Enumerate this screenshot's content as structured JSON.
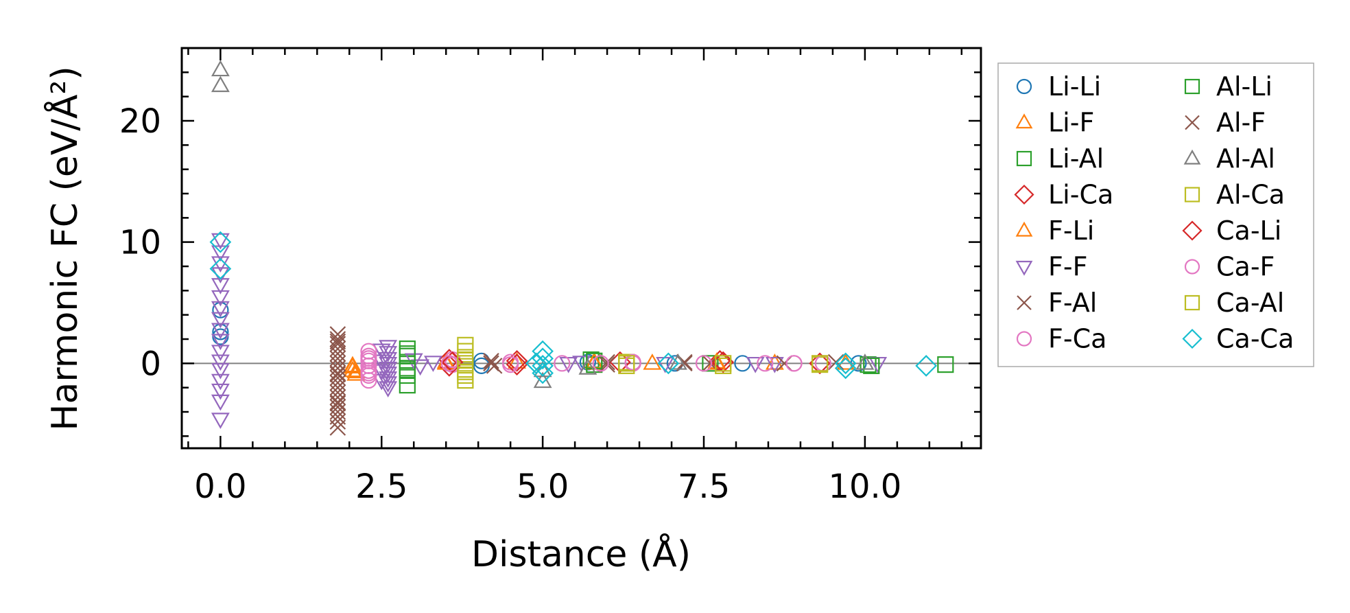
{
  "chart_data": {
    "type": "scatter",
    "title": "",
    "xlabel": "Distance (Å)",
    "ylabel": "Harmonic FC (eV/Å²)",
    "xlim": [
      -0.6,
      11.8
    ],
    "ylim": [
      -7,
      26
    ],
    "xticks": [
      0.0,
      2.5,
      5.0,
      7.5,
      10.0
    ],
    "xtick_labels": [
      "0.0",
      "2.5",
      "5.0",
      "7.5",
      "10.0"
    ],
    "yticks": [
      0,
      10,
      20
    ],
    "ytick_labels": [
      "0",
      "10",
      "20"
    ],
    "grid": false,
    "zero_line": true,
    "legend_position": "outside-right",
    "legend_columns": 2,
    "series": [
      {
        "name": "Li-Li",
        "marker": "circle",
        "color": "#1f77b4",
        "points": [
          [
            0.0,
            4.4
          ],
          [
            0.0,
            2.6
          ],
          [
            0.0,
            2.2
          ],
          [
            4.05,
            0.2
          ],
          [
            4.05,
            -0.2
          ],
          [
            5.7,
            0.1
          ],
          [
            7.05,
            0.0
          ],
          [
            8.1,
            0.0
          ],
          [
            9.9,
            0.0
          ]
        ]
      },
      {
        "name": "Li-F",
        "marker": "triangle-up",
        "color": "#ff7f0e",
        "points": [
          [
            2.05,
            -0.2
          ],
          [
            2.05,
            -0.6
          ],
          [
            2.1,
            -0.9
          ],
          [
            3.5,
            0.1
          ],
          [
            4.6,
            0.1
          ],
          [
            5.8,
            0.0
          ],
          [
            6.7,
            0.0
          ],
          [
            7.7,
            0.0
          ],
          [
            8.6,
            0.0
          ],
          [
            9.7,
            0.0
          ]
        ]
      },
      {
        "name": "Li-Al",
        "marker": "square",
        "color": "#2ca02c",
        "points": [
          [
            2.9,
            1.2
          ],
          [
            2.9,
            0.6
          ],
          [
            2.9,
            0.1
          ],
          [
            2.9,
            -0.4
          ],
          [
            2.9,
            -1.0
          ],
          [
            2.9,
            -1.8
          ],
          [
            5.75,
            0.3
          ],
          [
            5.8,
            -0.1
          ],
          [
            7.6,
            0.0
          ],
          [
            10.05,
            -0.1
          ],
          [
            11.25,
            -0.1
          ]
        ]
      },
      {
        "name": "Li-Ca",
        "marker": "diamond",
        "color": "#d62728",
        "points": [
          [
            3.55,
            0.3
          ],
          [
            3.55,
            -0.2
          ],
          [
            4.6,
            0.2
          ],
          [
            6.2,
            0.1
          ],
          [
            7.75,
            0.2
          ],
          [
            9.3,
            0.0
          ]
        ]
      },
      {
        "name": "F-Li",
        "marker": "triangle-up",
        "color": "#ff7f0e",
        "points": [
          [
            2.05,
            -0.3
          ],
          [
            2.1,
            -0.7
          ],
          [
            3.5,
            0.0
          ],
          [
            5.8,
            0.1
          ],
          [
            7.7,
            0.1
          ]
        ]
      },
      {
        "name": "F-F",
        "marker": "triangle-down",
        "color": "#9467bd",
        "points": [
          [
            0.0,
            10.2
          ],
          [
            0.0,
            9.2
          ],
          [
            0.0,
            8.3
          ],
          [
            0.0,
            7.4
          ],
          [
            0.0,
            6.5
          ],
          [
            0.0,
            5.5
          ],
          [
            0.0,
            4.6
          ],
          [
            0.0,
            3.7
          ],
          [
            0.0,
            2.8
          ],
          [
            0.0,
            1.9
          ],
          [
            0.0,
            1.0
          ],
          [
            0.0,
            0.2
          ],
          [
            0.0,
            -0.5
          ],
          [
            0.0,
            -1.4
          ],
          [
            0.0,
            -2.2
          ],
          [
            0.0,
            -3.1
          ],
          [
            0.0,
            -4.6
          ],
          [
            2.6,
            1.4
          ],
          [
            2.6,
            0.9
          ],
          [
            2.6,
            0.4
          ],
          [
            2.6,
            0.0
          ],
          [
            2.6,
            -0.4
          ],
          [
            2.6,
            -0.8
          ],
          [
            2.6,
            -1.2
          ],
          [
            2.6,
            -1.6
          ],
          [
            2.6,
            -2.0
          ],
          [
            2.5,
            1.1
          ],
          [
            2.5,
            0.2
          ],
          [
            2.5,
            -0.6
          ],
          [
            2.5,
            -1.4
          ],
          [
            3.0,
            0.3
          ],
          [
            3.1,
            -0.2
          ],
          [
            3.3,
            0.1
          ],
          [
            5.4,
            0.0
          ],
          [
            5.6,
            0.1
          ],
          [
            6.9,
            0.0
          ],
          [
            8.3,
            0.0
          ],
          [
            8.6,
            0.0
          ],
          [
            10.2,
            0.0
          ]
        ]
      },
      {
        "name": "F-Al",
        "marker": "x",
        "color": "#8c564b",
        "points": [
          [
            1.82,
            2.4
          ],
          [
            1.82,
            2.0
          ],
          [
            1.82,
            1.6
          ],
          [
            1.82,
            1.2
          ],
          [
            1.82,
            0.8
          ],
          [
            1.82,
            0.4
          ],
          [
            1.82,
            0.0
          ],
          [
            1.82,
            -0.4
          ],
          [
            1.82,
            -0.8
          ],
          [
            1.82,
            -1.2
          ],
          [
            1.82,
            -1.6
          ],
          [
            1.82,
            -2.0
          ],
          [
            1.82,
            -2.4
          ],
          [
            1.82,
            -2.8
          ],
          [
            1.82,
            -3.2
          ],
          [
            1.82,
            -3.6
          ],
          [
            1.82,
            -4.0
          ],
          [
            1.82,
            -4.4
          ],
          [
            1.82,
            -4.8
          ],
          [
            1.82,
            -5.3
          ],
          [
            4.2,
            0.2
          ],
          [
            4.25,
            -0.2
          ],
          [
            6.0,
            0.1
          ],
          [
            7.2,
            0.0
          ],
          [
            7.6,
            0.0
          ],
          [
            8.75,
            0.0
          ],
          [
            9.55,
            0.1
          ]
        ]
      },
      {
        "name": "F-Ca",
        "marker": "circle",
        "color": "#e377c2",
        "points": [
          [
            2.3,
            1.0
          ],
          [
            2.3,
            0.6
          ],
          [
            2.3,
            0.2
          ],
          [
            2.3,
            -0.2
          ],
          [
            2.3,
            -0.6
          ],
          [
            2.3,
            -1.0
          ],
          [
            2.3,
            -1.4
          ],
          [
            3.6,
            0.3
          ],
          [
            3.6,
            -0.1
          ],
          [
            4.5,
            0.1
          ],
          [
            6.4,
            0.0
          ],
          [
            8.9,
            0.0
          ]
        ]
      },
      {
        "name": "Al-Li",
        "marker": "square",
        "color": "#2ca02c",
        "points": [
          [
            2.9,
            0.8
          ],
          [
            2.9,
            -0.6
          ],
          [
            5.8,
            0.2
          ],
          [
            10.1,
            -0.2
          ]
        ]
      },
      {
        "name": "Al-F",
        "marker": "x",
        "color": "#8c564b",
        "points": [
          [
            1.82,
            1.8
          ],
          [
            1.82,
            -0.9
          ],
          [
            1.82,
            -3.3
          ],
          [
            4.2,
            0.0
          ],
          [
            6.0,
            -0.1
          ],
          [
            7.2,
            0.1
          ]
        ]
      },
      {
        "name": "Al-Al",
        "marker": "triangle-up",
        "color": "#7f7f7f",
        "points": [
          [
            0.0,
            24.2
          ],
          [
            0.0,
            22.9
          ],
          [
            5.0,
            -1.5
          ],
          [
            5.0,
            -0.6
          ],
          [
            5.7,
            -0.4
          ],
          [
            7.1,
            0.0
          ],
          [
            10.0,
            0.0
          ]
        ]
      },
      {
        "name": "Al-Ca",
        "marker": "square",
        "color": "#bcbd22",
        "points": [
          [
            3.8,
            1.5
          ],
          [
            3.8,
            1.0
          ],
          [
            3.8,
            0.5
          ],
          [
            3.8,
            0.0
          ],
          [
            3.8,
            -0.5
          ],
          [
            3.8,
            -1.0
          ],
          [
            3.8,
            -1.4
          ],
          [
            6.3,
            0.1
          ],
          [
            6.3,
            -0.2
          ],
          [
            7.8,
            -0.2
          ],
          [
            9.3,
            -0.1
          ]
        ]
      },
      {
        "name": "Ca-Li",
        "marker": "diamond",
        "color": "#d62728",
        "points": [
          [
            3.6,
            0.1
          ],
          [
            4.6,
            -0.1
          ],
          [
            7.8,
            0.1
          ]
        ]
      },
      {
        "name": "Ca-F",
        "marker": "circle",
        "color": "#e377c2",
        "points": [
          [
            2.3,
            0.4
          ],
          [
            2.3,
            -0.8
          ],
          [
            3.55,
            0.0
          ],
          [
            4.5,
            -0.1
          ],
          [
            5.3,
            0.0
          ],
          [
            5.9,
            0.0
          ],
          [
            6.4,
            0.1
          ],
          [
            7.5,
            0.0
          ],
          [
            8.45,
            0.0
          ],
          [
            8.9,
            0.0
          ],
          [
            9.35,
            0.0
          ]
        ]
      },
      {
        "name": "Ca-Al",
        "marker": "square",
        "color": "#bcbd22",
        "points": [
          [
            3.8,
            0.3
          ],
          [
            3.8,
            -0.7
          ],
          [
            6.3,
            0.0
          ],
          [
            7.8,
            0.0
          ],
          [
            9.3,
            0.0
          ]
        ]
      },
      {
        "name": "Ca-Ca",
        "marker": "diamond",
        "color": "#17becf",
        "points": [
          [
            0.0,
            10.0
          ],
          [
            0.0,
            7.8
          ],
          [
            5.0,
            1.0
          ],
          [
            5.0,
            0.4
          ],
          [
            5.0,
            -0.2
          ],
          [
            5.0,
            -0.8
          ],
          [
            4.9,
            0.0
          ],
          [
            6.95,
            0.0
          ],
          [
            9.7,
            0.0
          ],
          [
            9.7,
            -0.4
          ],
          [
            10.95,
            -0.2
          ]
        ]
      }
    ]
  }
}
